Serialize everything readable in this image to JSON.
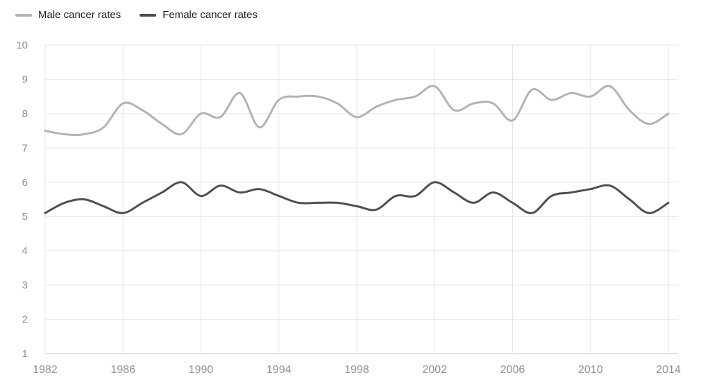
{
  "legend": {
    "items": [
      {
        "label": "Male cancer rates"
      },
      {
        "label": "Female cancer rates"
      }
    ]
  },
  "chart_data": {
    "type": "line",
    "title": "",
    "xlabel": "",
    "ylabel": "",
    "x": [
      1982,
      1983,
      1984,
      1985,
      1986,
      1987,
      1988,
      1989,
      1990,
      1991,
      1992,
      1993,
      1994,
      1995,
      1996,
      1997,
      1998,
      1999,
      2000,
      2001,
      2002,
      2003,
      2004,
      2005,
      2006,
      2007,
      2008,
      2009,
      2010,
      2011,
      2012,
      2013,
      2014
    ],
    "series": [
      {
        "name": "Male cancer rates",
        "color": "#b3b3b3",
        "values": [
          7.5,
          7.4,
          7.4,
          7.6,
          8.3,
          8.1,
          7.7,
          7.4,
          8.0,
          7.9,
          8.6,
          7.6,
          8.4,
          8.5,
          8.5,
          8.3,
          7.9,
          8.2,
          8.4,
          8.5,
          8.8,
          8.1,
          8.3,
          8.3,
          7.8,
          8.7,
          8.4,
          8.6,
          8.5,
          8.8,
          8.1,
          7.7,
          8.0
        ]
      },
      {
        "name": "Female cancer rates",
        "color": "#4f4f4f",
        "values": [
          5.1,
          5.4,
          5.5,
          5.3,
          5.1,
          5.4,
          5.7,
          6.0,
          5.6,
          5.9,
          5.7,
          5.8,
          5.6,
          5.4,
          5.4,
          5.4,
          5.3,
          5.2,
          5.6,
          5.6,
          6.0,
          5.7,
          5.4,
          5.7,
          5.4,
          5.1,
          5.6,
          5.7,
          5.8,
          5.9,
          5.5,
          5.1,
          5.4
        ]
      }
    ],
    "xlim": [
      1982,
      2014
    ],
    "ylim": [
      1,
      10
    ],
    "xticks": [
      1982,
      1986,
      1990,
      1994,
      1998,
      2002,
      2006,
      2010,
      2014
    ],
    "yticks": [
      10,
      9,
      8,
      7,
      6,
      5,
      4,
      3,
      2,
      1
    ],
    "grid": true,
    "legend_position": "top-left",
    "curve": "smooth"
  },
  "style": {
    "background": "#ffffff",
    "grid_color": "#e6e6e6",
    "baseline_color": "#c9c9c9",
    "axis_label_color": "#8e8e8e",
    "legend_text_color": "#1e1e1e"
  }
}
